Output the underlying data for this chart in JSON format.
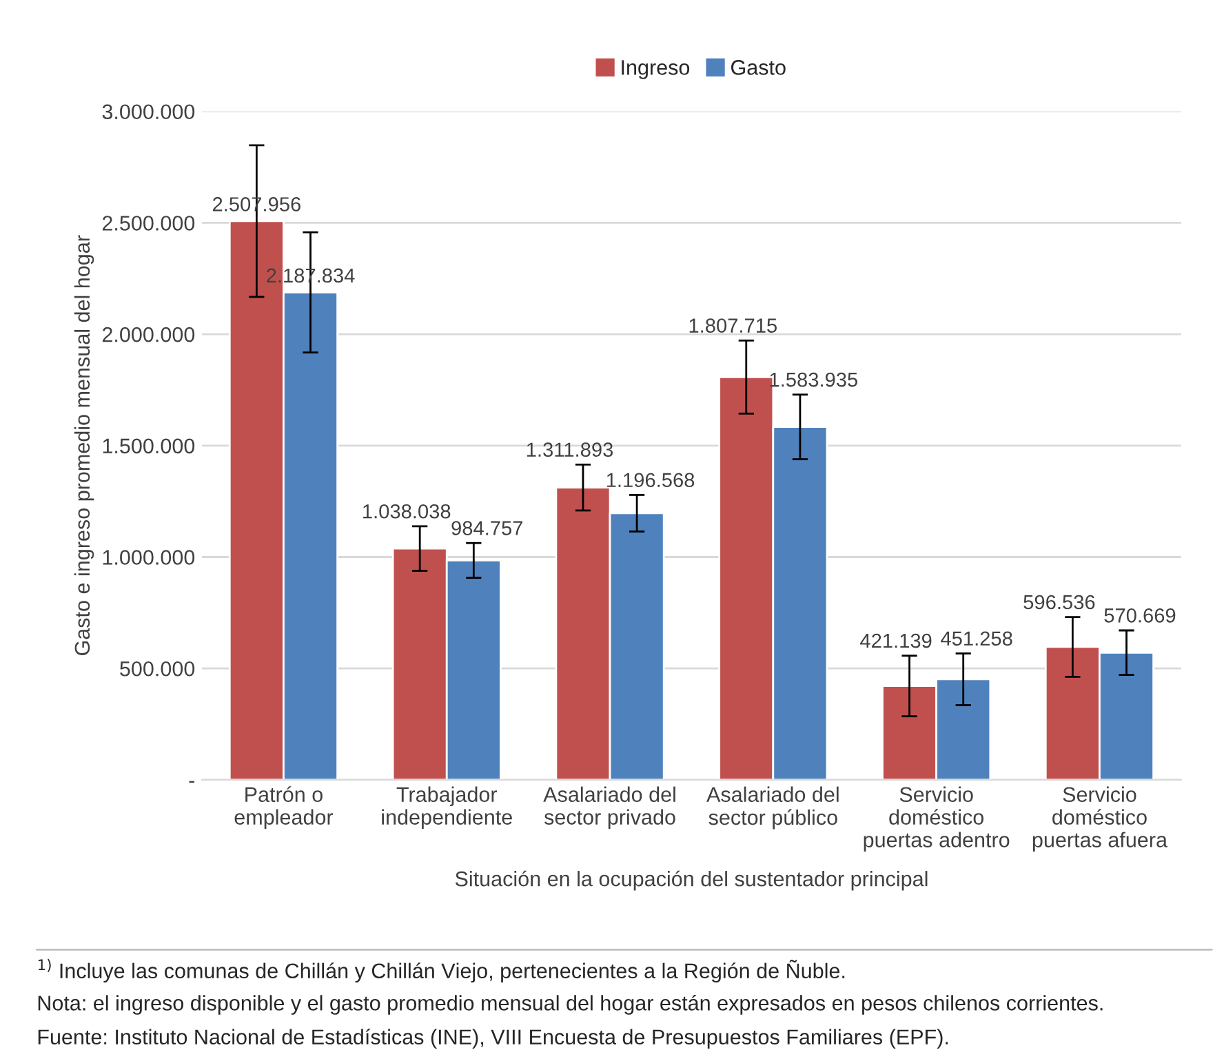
{
  "chart_data": {
    "type": "bar",
    "categories": [
      "Patrón o\nempleador",
      "Trabajador\nindependiente",
      "Asalariado del\nsector privado",
      "Asalariado del\nsector público",
      "Servicio\ndoméstico\npuertas adentro",
      "Servicio\ndoméstico\npuertas afuera"
    ],
    "series": [
      {
        "name": "Ingreso",
        "color": "#c0504d",
        "values": [
          2507956,
          1038038,
          1311893,
          1807715,
          421139,
          596536
        ],
        "errors": [
          340000,
          100000,
          103000,
          164000,
          136000,
          134000
        ],
        "value_labels": [
          "2.507.956",
          "1.038.038",
          "1.311.893",
          "1.807.715",
          "421.139",
          "596.536"
        ]
      },
      {
        "name": "Gasto",
        "color": "#4f81bd",
        "values": [
          2187834,
          984757,
          1196568,
          1583935,
          451258,
          570669
        ],
        "errors": [
          270000,
          78000,
          82000,
          145000,
          116000,
          100000
        ],
        "value_labels": [
          "2.187.834",
          "984.757",
          "1.196.568",
          "1.583.935",
          "451.258",
          "570.669"
        ]
      }
    ],
    "xlabel": "Situación en la ocupación del sustentador principal",
    "ylabel": "Gasto e ingreso promedio mensual del hogar",
    "ylim": [
      0,
      3000000
    ],
    "yticks": [
      {
        "value": 0,
        "label": "-"
      },
      {
        "value": 500000,
        "label": "500.000"
      },
      {
        "value": 1000000,
        "label": "1.000.000"
      },
      {
        "value": 1500000,
        "label": "1.500.000"
      },
      {
        "value": 2000000,
        "label": "2.000.000"
      },
      {
        "value": 2500000,
        "label": "2.500.000"
      },
      {
        "value": 3000000,
        "label": "3.000.000"
      }
    ],
    "grid": "y",
    "legend": "top",
    "annotations": [
      "$^{1)}$ Incluye las comunas de Chillán y Chillán Viejo, pertenecientes a la Región de Ñuble.",
      "Nota: el ingreso disponible y el gasto promedio mensual del hogar están expresados en pesos chilenos corrientes.",
      "Fuente: Instituto Nacional de Estadísticas (INE), VIII Encuesta de Presupuestos Familiares (EPF)."
    ]
  }
}
